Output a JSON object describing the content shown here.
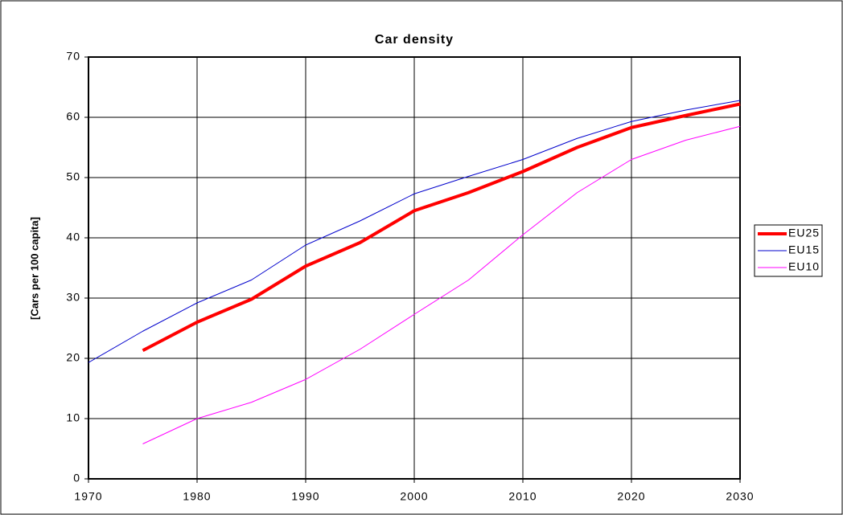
{
  "chart_data": {
    "type": "line",
    "title": "Car density",
    "y_label": "[Cars per 100 capita]",
    "x": [
      1970,
      1975,
      1980,
      1985,
      1990,
      1995,
      2000,
      2005,
      2010,
      2015,
      2020,
      2025,
      2030
    ],
    "series": [
      {
        "name": "EU25",
        "color": "#ff0000",
        "width": 4,
        "values": [
          null,
          21.3,
          26,
          29.8,
          35.3,
          39.2,
          44.5,
          47.5,
          51,
          55,
          58.3,
          60.3,
          62.2
        ]
      },
      {
        "name": "EU15",
        "color": "#0000cc",
        "width": 1,
        "values": [
          19.3,
          24.5,
          29.2,
          33,
          38.8,
          42.8,
          47.3,
          50.2,
          53,
          56.5,
          59.3,
          61.2,
          62.8
        ]
      },
      {
        "name": "EU10",
        "color": "#ff00ff",
        "width": 1,
        "values": [
          null,
          5.8,
          10,
          12.7,
          16.5,
          21.5,
          27.3,
          33,
          40.5,
          47.5,
          53,
          56.2,
          58.5
        ]
      }
    ],
    "xlim": [
      1970,
      2030
    ],
    "xticks": [
      1970,
      1980,
      1990,
      2000,
      2010,
      2020,
      2030
    ],
    "ylim": [
      0,
      70
    ],
    "yticks": [
      0,
      10,
      20,
      30,
      40,
      50,
      60,
      70
    ],
    "grid": true,
    "legend": "right"
  }
}
